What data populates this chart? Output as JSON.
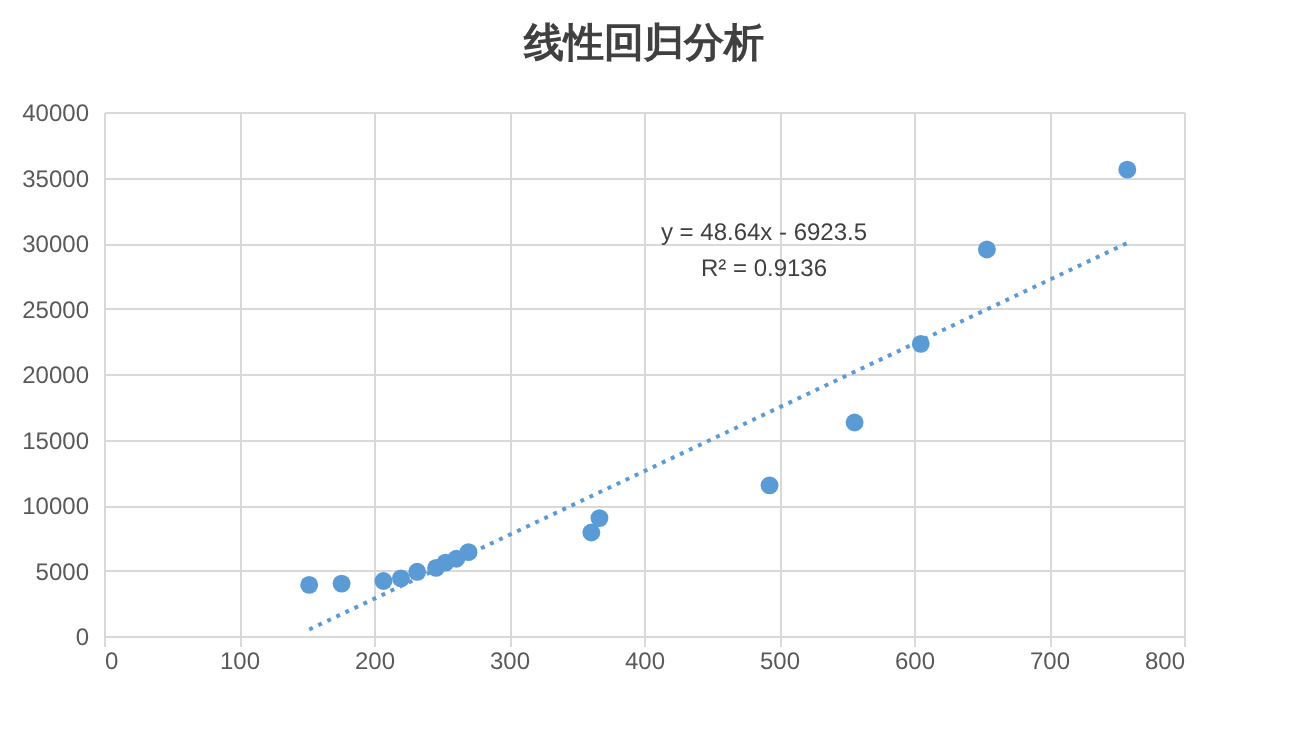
{
  "chart_data": {
    "type": "scatter",
    "title": "线性回归分析",
    "xlim": [
      0,
      800
    ],
    "xticks": [
      0,
      100,
      200,
      300,
      400,
      500,
      600,
      700,
      800
    ],
    "ylim": [
      0,
      40000
    ],
    "yticks": [
      0,
      5000,
      10000,
      15000,
      20000,
      25000,
      30000,
      35000,
      40000
    ],
    "grid": true,
    "marker": "circle",
    "series": [
      {
        "color": "#5b9bd5",
        "x": [
          152,
          176,
          207,
          220,
          232,
          246,
          253,
          261,
          270,
          361,
          367,
          493,
          556,
          605,
          654,
          758
        ],
        "values": [
          3900,
          4000,
          4200,
          4400,
          4900,
          5200,
          5600,
          5900,
          6400,
          7900,
          9000,
          11500,
          16300,
          22300,
          29500,
          35600
        ]
      },
      {
        "type": "line",
        "color": "#5b9bd5",
        "line_style": "dotted",
        "marker": "none",
        "x": [
          152,
          758
        ],
        "values": [
          500,
          30000
        ]
      }
    ],
    "annotations": [
      "y = 48.64x - 6923.5",
      "R² = 0.9136"
    ]
  }
}
